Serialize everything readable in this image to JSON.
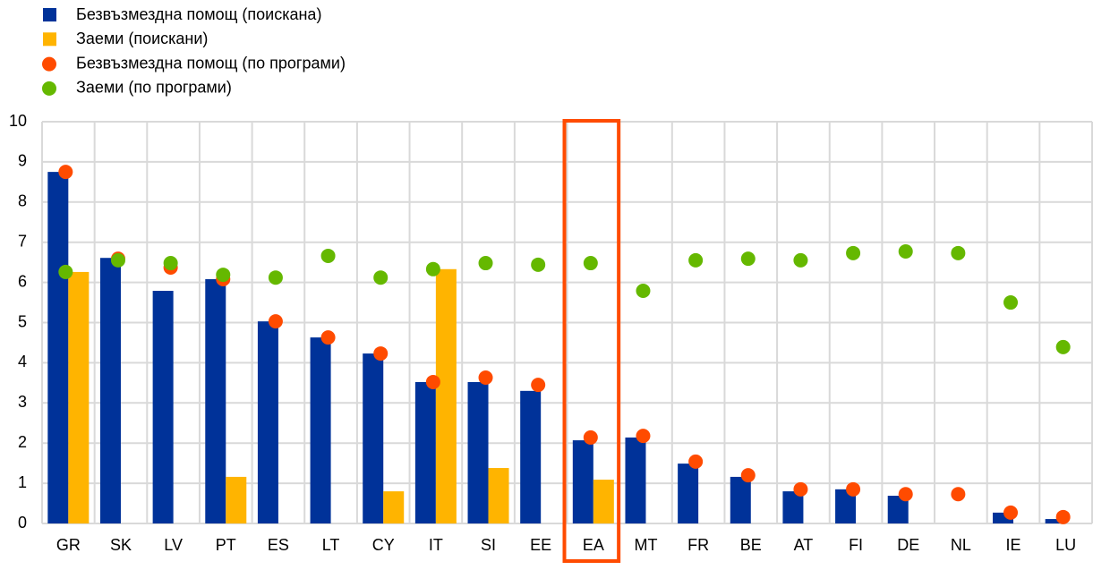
{
  "chart_data": {
    "type": "bar_dot",
    "categories": [
      "GR",
      "SK",
      "LV",
      "PT",
      "ES",
      "LT",
      "CY",
      "IT",
      "SI",
      "EE",
      "EA",
      "MT",
      "FR",
      "BE",
      "AT",
      "FI",
      "DE",
      "NL",
      "IE",
      "LU"
    ],
    "series": [
      {
        "name": "Безвъзмездна помощ (поискана)",
        "color": "#003299",
        "mark": "bar",
        "values": [
          8.75,
          6.61,
          5.79,
          6.08,
          5.03,
          4.63,
          4.23,
          3.52,
          3.52,
          3.3,
          2.07,
          2.14,
          1.49,
          1.16,
          0.8,
          0.85,
          0.69,
          null,
          0.27,
          0.11
        ]
      },
      {
        "name": "Заеми (поискани)",
        "color": "#ffb400",
        "mark": "bar",
        "values": [
          6.26,
          null,
          null,
          1.16,
          null,
          null,
          0.8,
          6.33,
          1.38,
          null,
          1.09,
          null,
          null,
          null,
          null,
          null,
          null,
          null,
          null,
          null
        ]
      },
      {
        "name": "Безвъзмездна помощ (по програми)",
        "color": "#ff4b00",
        "mark": "dot",
        "values": [
          8.75,
          6.59,
          6.37,
          6.08,
          5.03,
          4.63,
          4.23,
          3.52,
          3.63,
          3.45,
          2.14,
          2.18,
          1.54,
          1.2,
          0.85,
          0.85,
          0.73,
          0.73,
          0.27,
          0.16
        ]
      },
      {
        "name": "Заеми (по програми)",
        "color": "#65b800",
        "mark": "dot",
        "values": [
          6.26,
          6.55,
          6.48,
          6.19,
          6.12,
          6.66,
          6.12,
          6.33,
          6.48,
          6.44,
          6.48,
          5.79,
          6.55,
          6.59,
          6.55,
          6.73,
          6.77,
          6.73,
          5.5,
          4.39
        ]
      }
    ],
    "ylim": [
      0,
      10
    ],
    "yticks": [
      0,
      1,
      2,
      3,
      4,
      5,
      6,
      7,
      8,
      9,
      10
    ],
    "grid": true,
    "highlight_color": "#ff4b00",
    "highlight_index": 10
  }
}
